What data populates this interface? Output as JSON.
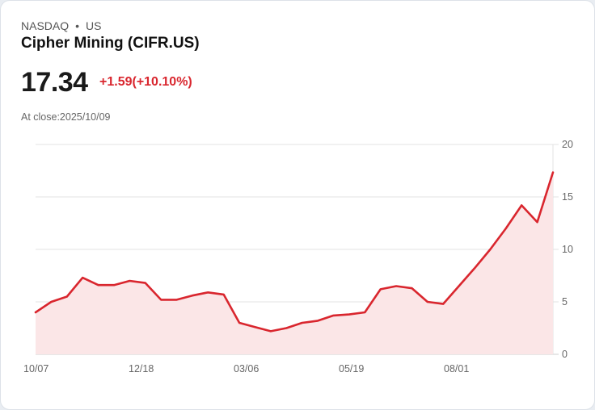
{
  "header": {
    "exchange": "NASDAQ",
    "separator": "•",
    "market": "US",
    "title": "Cipher Mining (CIFR.US)",
    "price": "17.34",
    "change": "+1.59(+10.10%)",
    "close_label": "At close:2025/10/09"
  },
  "colors": {
    "line": "#d9262e",
    "fill": "#fbe6e7",
    "grid": "#e3e3e3",
    "change": "#d9262e"
  },
  "chart_data": {
    "type": "line",
    "title": "Cipher Mining (CIFR.US)",
    "xlabel": "",
    "ylabel": "",
    "ylim": [
      0,
      20
    ],
    "yticks": [
      0,
      5,
      10,
      15,
      20
    ],
    "xticks": [
      "10/07",
      "12/18",
      "03/06",
      "05/19",
      "08/01"
    ],
    "grid": true,
    "y_axis_position": "right",
    "x": [
      "10/07",
      "10/21",
      "11/04",
      "11/11",
      "11/18",
      "12/02",
      "12/09",
      "12/18",
      "12/30",
      "01/08",
      "01/20",
      "02/03",
      "02/14",
      "03/06",
      "03/20",
      "04/03",
      "04/10",
      "04/21",
      "05/05",
      "05/19",
      "06/02",
      "06/16",
      "06/30",
      "07/14",
      "07/28",
      "08/01",
      "08/15",
      "08/29",
      "09/05",
      "09/12",
      "09/19",
      "09/26",
      "10/02",
      "10/09"
    ],
    "values": [
      4.0,
      5.0,
      5.5,
      7.3,
      6.6,
      6.6,
      7.0,
      6.8,
      5.2,
      5.2,
      5.6,
      5.9,
      5.7,
      3.0,
      2.6,
      2.2,
      2.5,
      3.0,
      3.2,
      3.7,
      3.8,
      4.0,
      6.2,
      6.5,
      6.3,
      5.0,
      4.8,
      6.5,
      8.2,
      10.0,
      12.0,
      14.2,
      12.6,
      17.34
    ]
  }
}
